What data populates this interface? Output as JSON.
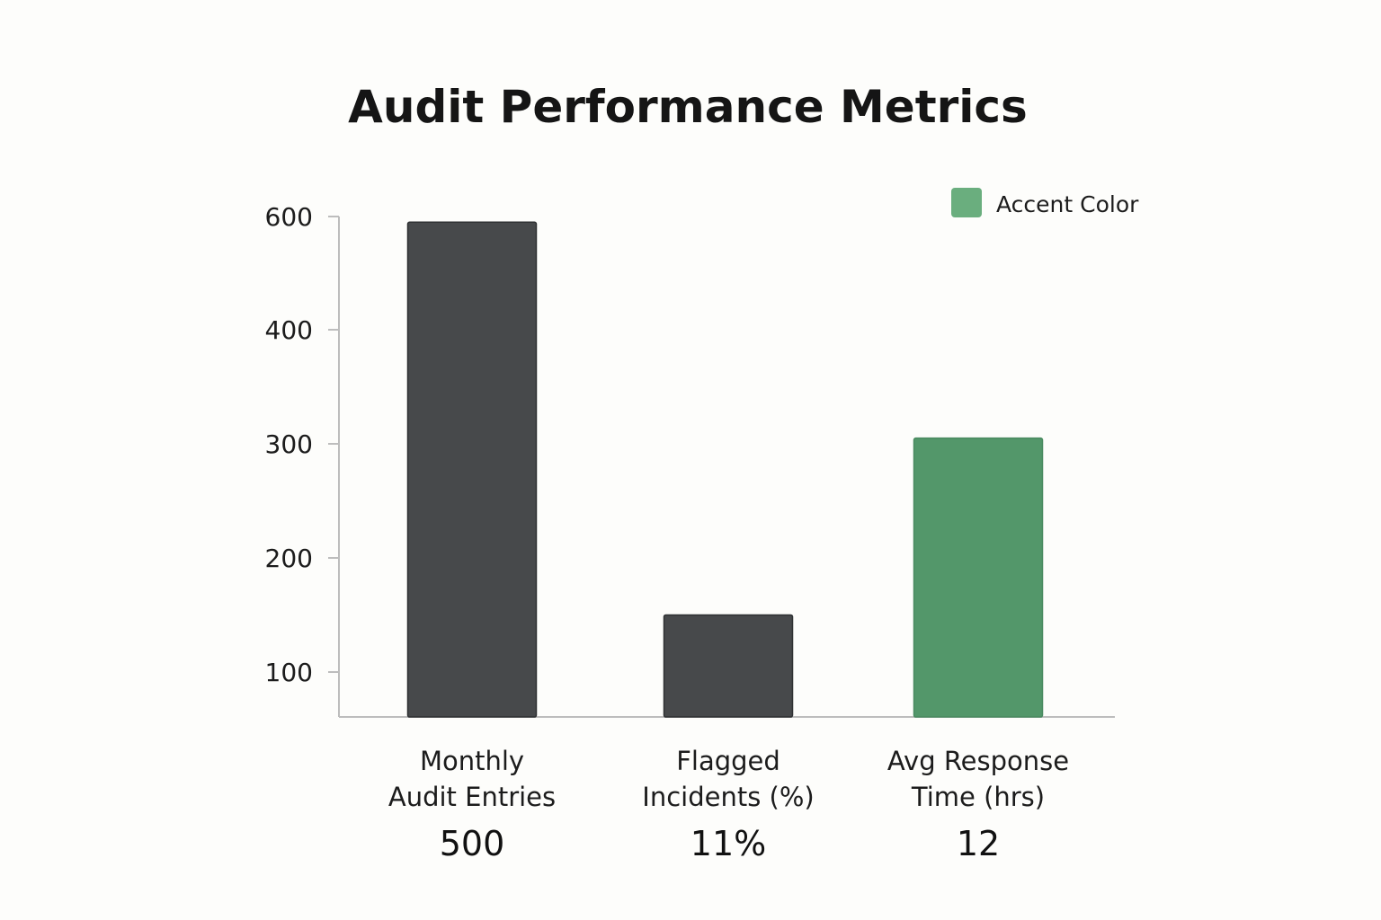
{
  "chart_data": {
    "type": "bar",
    "title": "Audit Performance Metrics",
    "xlabel": "",
    "ylabel": "",
    "y_ticks": [
      {
        "value": 100,
        "label": "100"
      },
      {
        "value": 200,
        "label": "200"
      },
      {
        "value": 300,
        "label": "300"
      },
      {
        "value": 400,
        "label": "400"
      },
      {
        "value": 600,
        "label": "600"
      }
    ],
    "categories": [
      {
        "label_lines": [
          "Monthly",
          "Audit Entries"
        ],
        "value_label": "500",
        "bar_value": 590,
        "color": "#47494b"
      },
      {
        "label_lines": [
          "Flagged",
          "Incidents (%)"
        ],
        "value_label": "11%",
        "bar_value": 150,
        "color": "#47494b"
      },
      {
        "label_lines": [
          "Avg Response",
          "Time (hrs)"
        ],
        "value_label": "12",
        "bar_value": 305,
        "color": "#53976a"
      }
    ],
    "legend": {
      "label": "Accent Color",
      "color": "#6aae7e",
      "position": "top-right"
    },
    "grid": false
  }
}
